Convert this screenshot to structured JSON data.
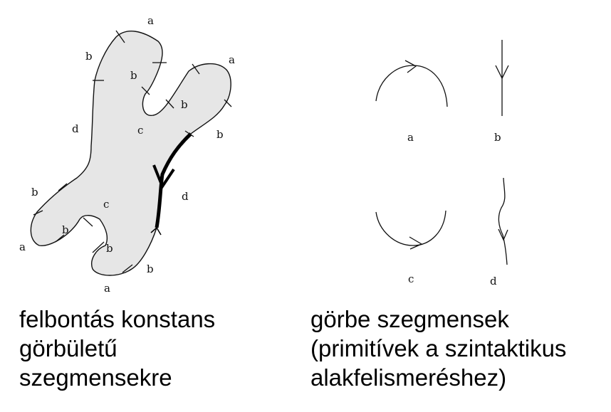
{
  "shape_labels": {
    "a_top": "a",
    "b_upper_left": "b",
    "b_upper_mid": "b",
    "a_right": "a",
    "b_notch": "b",
    "c_upper": "c",
    "b_right": "b",
    "d_left": "d",
    "d_right": "d",
    "b_left": "b",
    "c_lower": "c",
    "b_lower_left": "b",
    "a_left": "a",
    "b_lower_notch": "b",
    "b_bottom": "b",
    "a_bottom": "a"
  },
  "primitives": {
    "a": "a",
    "b": "b",
    "c": "c",
    "d": "d"
  },
  "captions": {
    "left": [
      "felbontás konstans",
      "görbületű",
      "szegmensekre"
    ],
    "right": [
      "görbe szegmensek",
      "(primitívek a szintaktikus",
      "alakfelismeréshez)"
    ]
  }
}
